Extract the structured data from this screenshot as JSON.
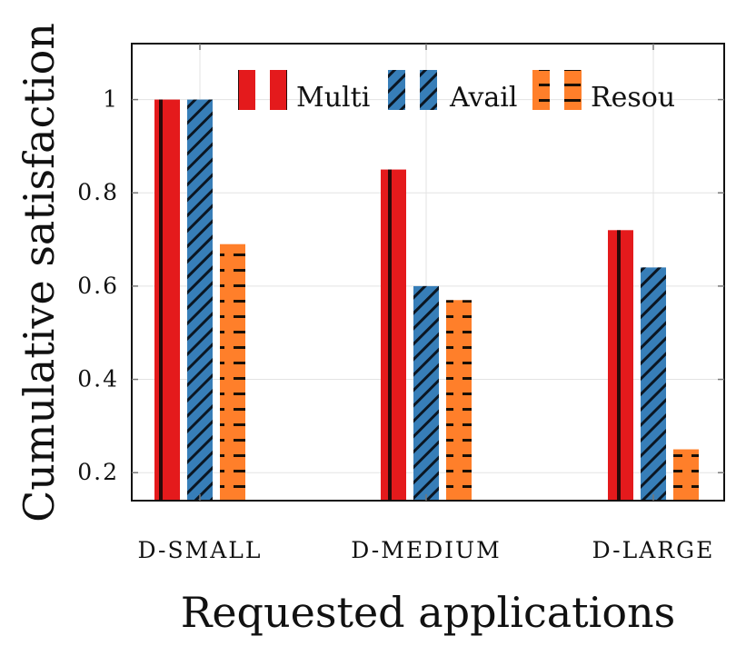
{
  "chart_data": {
    "type": "bar",
    "xlabel": "Requested applications",
    "ylabel": "Cumulative satisfaction",
    "categories": [
      "D-SMALL",
      "D-MEDIUM",
      "D-LARGE"
    ],
    "ylim": [
      0.14,
      1.12
    ],
    "yticks": [
      0.2,
      0.4,
      0.6,
      0.8,
      1
    ],
    "ytick_labels": [
      "0.2",
      "0.4",
      "0.6",
      "0.8",
      "1"
    ],
    "grid": true,
    "legend_position": "top-right",
    "series": [
      {
        "name": "Multi",
        "values": [
          1.0,
          0.85,
          0.72
        ],
        "color": "#e41a1c",
        "pattern": "vertical-lines"
      },
      {
        "name": "Avail",
        "values": [
          1.0,
          0.6,
          0.64
        ],
        "color": "#377eb8",
        "pattern": "diagonal-lines"
      },
      {
        "name": "Resou",
        "values": [
          0.69,
          0.57,
          0.25
        ],
        "color": "#ff7f2a",
        "pattern": "horizontal-dashes"
      }
    ]
  }
}
